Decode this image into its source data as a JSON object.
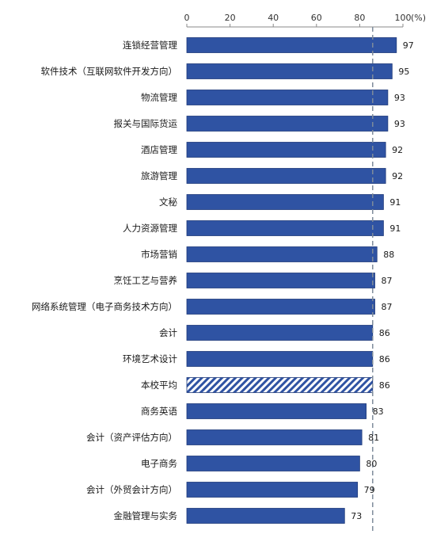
{
  "chart_data": {
    "type": "bar",
    "orientation": "horizontal",
    "categories": [
      "连锁经营管理",
      "软件技术（互联网软件开发方向）",
      "物流管理",
      "报关与国际货运",
      "酒店管理",
      "旅游管理",
      "文秘",
      "人力资源管理",
      "市场营销",
      "烹饪工艺与营养",
      "网络系统管理（电子商务技术方向）",
      "会计",
      "环境艺术设计",
      "本校平均",
      "商务英语",
      "会计（资产评估方向）",
      "电子商务",
      "会计（外贸会计方向）",
      "金融管理与实务"
    ],
    "values": [
      97,
      95,
      93,
      93,
      92,
      92,
      91,
      91,
      88,
      87,
      87,
      86,
      86,
      86,
      83,
      81,
      80,
      79,
      73
    ],
    "highlighted_category": "本校平均",
    "xlim": [
      0,
      100
    ],
    "xticks": [
      "0",
      "20",
      "40",
      "60",
      "80",
      "100"
    ],
    "x_unit": "(%)",
    "reference_line": {
      "value": 86,
      "style": "dashed"
    },
    "title": "",
    "xlabel": "",
    "ylabel": "",
    "grid": false,
    "colors": {
      "bar": "#2F53A3",
      "bar_border": "#1E3A7A",
      "hatch": "#2F53A3",
      "reference_line": "#7F8C9B",
      "axis": "#888888"
    }
  }
}
